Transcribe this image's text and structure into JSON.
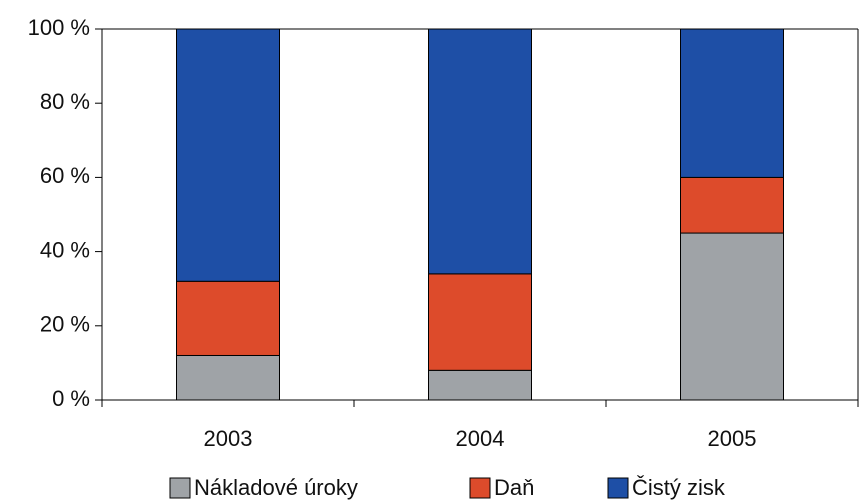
{
  "chart_data": {
    "type": "stacked_bar",
    "categories": [
      "2003",
      "2004",
      "2005"
    ],
    "series": [
      {
        "name": "Nákladové úroky",
        "color": "#9fa3a7",
        "values": [
          12,
          8,
          45
        ]
      },
      {
        "name": "Daň",
        "color": "#dd4b2b",
        "values": [
          20,
          26,
          15
        ]
      },
      {
        "name": "Čistý zisk",
        "color": "#1e4fa6",
        "values": [
          68,
          66,
          40
        ]
      }
    ],
    "ylim": [
      0,
      100
    ],
    "yticks": [
      {
        "value": 0,
        "label": "0 %"
      },
      {
        "value": 20,
        "label": "20 %"
      },
      {
        "value": 40,
        "label": "40 %"
      },
      {
        "value": 60,
        "label": "60 %"
      },
      {
        "value": 80,
        "label": "80 %"
      },
      {
        "value": 100,
        "label": "100 %"
      }
    ]
  }
}
